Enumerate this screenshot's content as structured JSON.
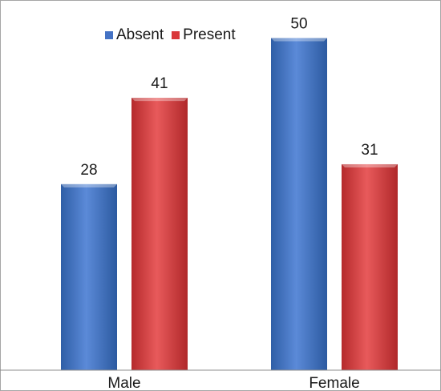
{
  "chart_data": {
    "type": "bar",
    "categories": [
      "Male",
      "Female"
    ],
    "series": [
      {
        "name": "Absent",
        "values": [
          28,
          50
        ]
      },
      {
        "name": "Present",
        "values": [
          41,
          31
        ]
      }
    ],
    "title": "",
    "xlabel": "",
    "ylabel": "",
    "ylim": [
      0,
      55
    ],
    "grid": false,
    "legend_position": "top-left",
    "data_labels": true,
    "colors": {
      "Absent": "#4472c4",
      "Present": "#d9383a"
    }
  }
}
